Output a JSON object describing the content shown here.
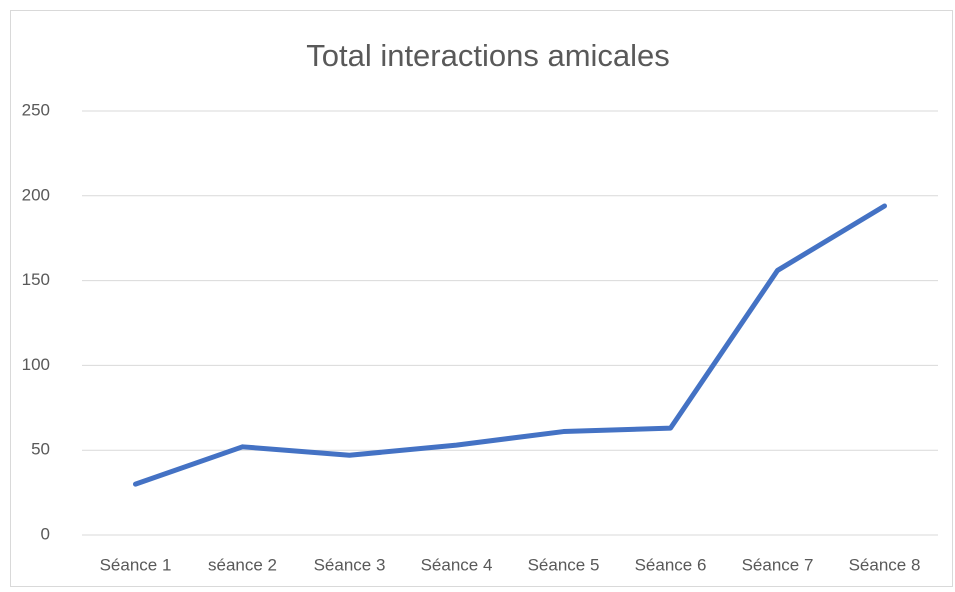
{
  "chart_data": {
    "type": "line",
    "title": "Total interactions amicales",
    "categories": [
      "Séance 1",
      "séance 2",
      "Séance 3",
      "Séance 4",
      "Séance 5",
      "Séance 6",
      "Séance 7",
      "Séance 8"
    ],
    "series": [
      {
        "name": "Total interactions amicales",
        "color": "#4472c4",
        "values": [
          30,
          52,
          47,
          53,
          61,
          63,
          156,
          194
        ]
      }
    ],
    "ylim": [
      0,
      250
    ],
    "yticks": [
      0,
      50,
      100,
      150,
      200,
      250
    ],
    "grid": true
  }
}
